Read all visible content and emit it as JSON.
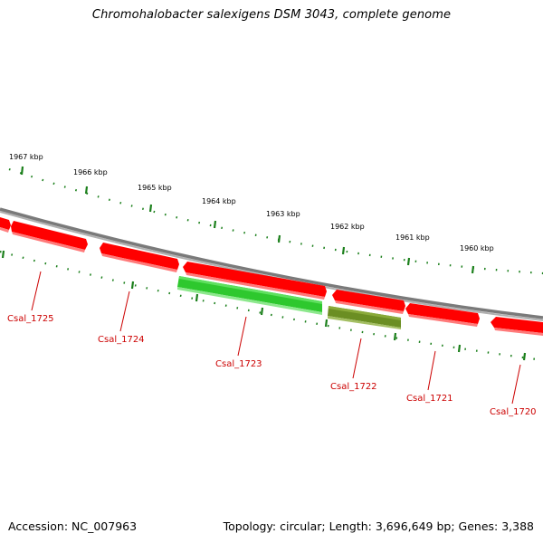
{
  "title": "Chromohalobacter salexigens DSM 3043, complete genome",
  "accession": "Accession: NC_007963",
  "summary": "Topology: circular; Length: 3,696,649 bp; Genes: 3,388",
  "colors": {
    "backbone": "#808080",
    "ticks": "#1a7f1a",
    "forward_gene": "#ff0000",
    "reverse_gene": "#2bcc2b",
    "reverse_gene_dark": "#6b8e23",
    "label": "#cc0000"
  },
  "scale_labels": [
    {
      "text": "1967 kbp"
    },
    {
      "text": "1966 kbp"
    },
    {
      "text": "1965 kbp"
    },
    {
      "text": "1964 kbp"
    },
    {
      "text": "1963 kbp"
    },
    {
      "text": "1962 kbp"
    },
    {
      "text": "1961 kbp"
    },
    {
      "text": "1960 kbp"
    }
  ],
  "genes": [
    {
      "label": "Csal_1725"
    },
    {
      "label": "Csal_1724"
    },
    {
      "label": "Csal_1723"
    },
    {
      "label": "Csal_1722"
    },
    {
      "label": "Csal_1721"
    },
    {
      "label": "Csal_1720"
    }
  ]
}
